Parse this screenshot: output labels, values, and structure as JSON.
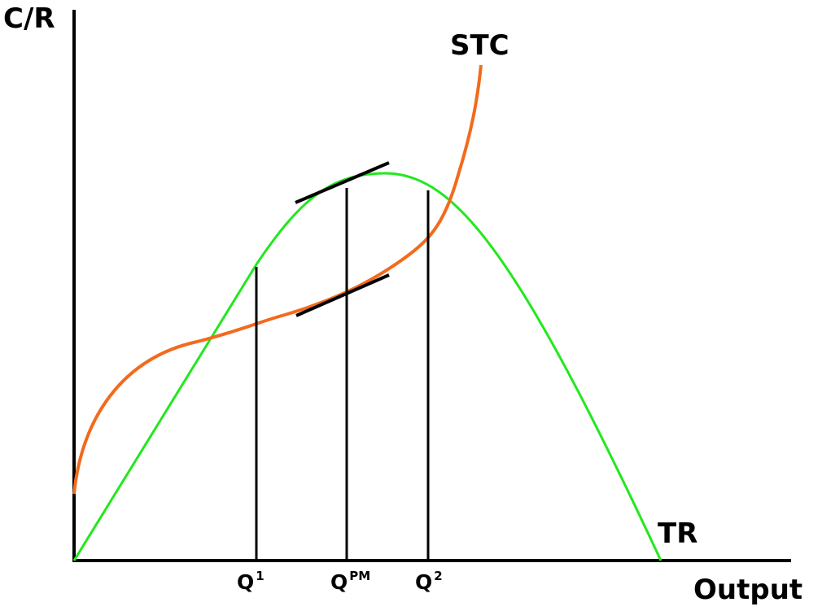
{
  "axes": {
    "y_label": "C/R",
    "x_label": "Output"
  },
  "curves": {
    "stc": {
      "label": "STC",
      "color": "#f26b1d"
    },
    "tr": {
      "label": "TR",
      "color": "#22e81e"
    }
  },
  "quantities": [
    {
      "id": "q1",
      "base": "Q",
      "sup": "1"
    },
    {
      "id": "qpm",
      "base": "Q",
      "sup": "PM"
    },
    {
      "id": "q2",
      "base": "Q",
      "sup": "2"
    }
  ],
  "colors": {
    "axis": "#000000",
    "guide": "#000000",
    "tangent": "#000000"
  }
}
